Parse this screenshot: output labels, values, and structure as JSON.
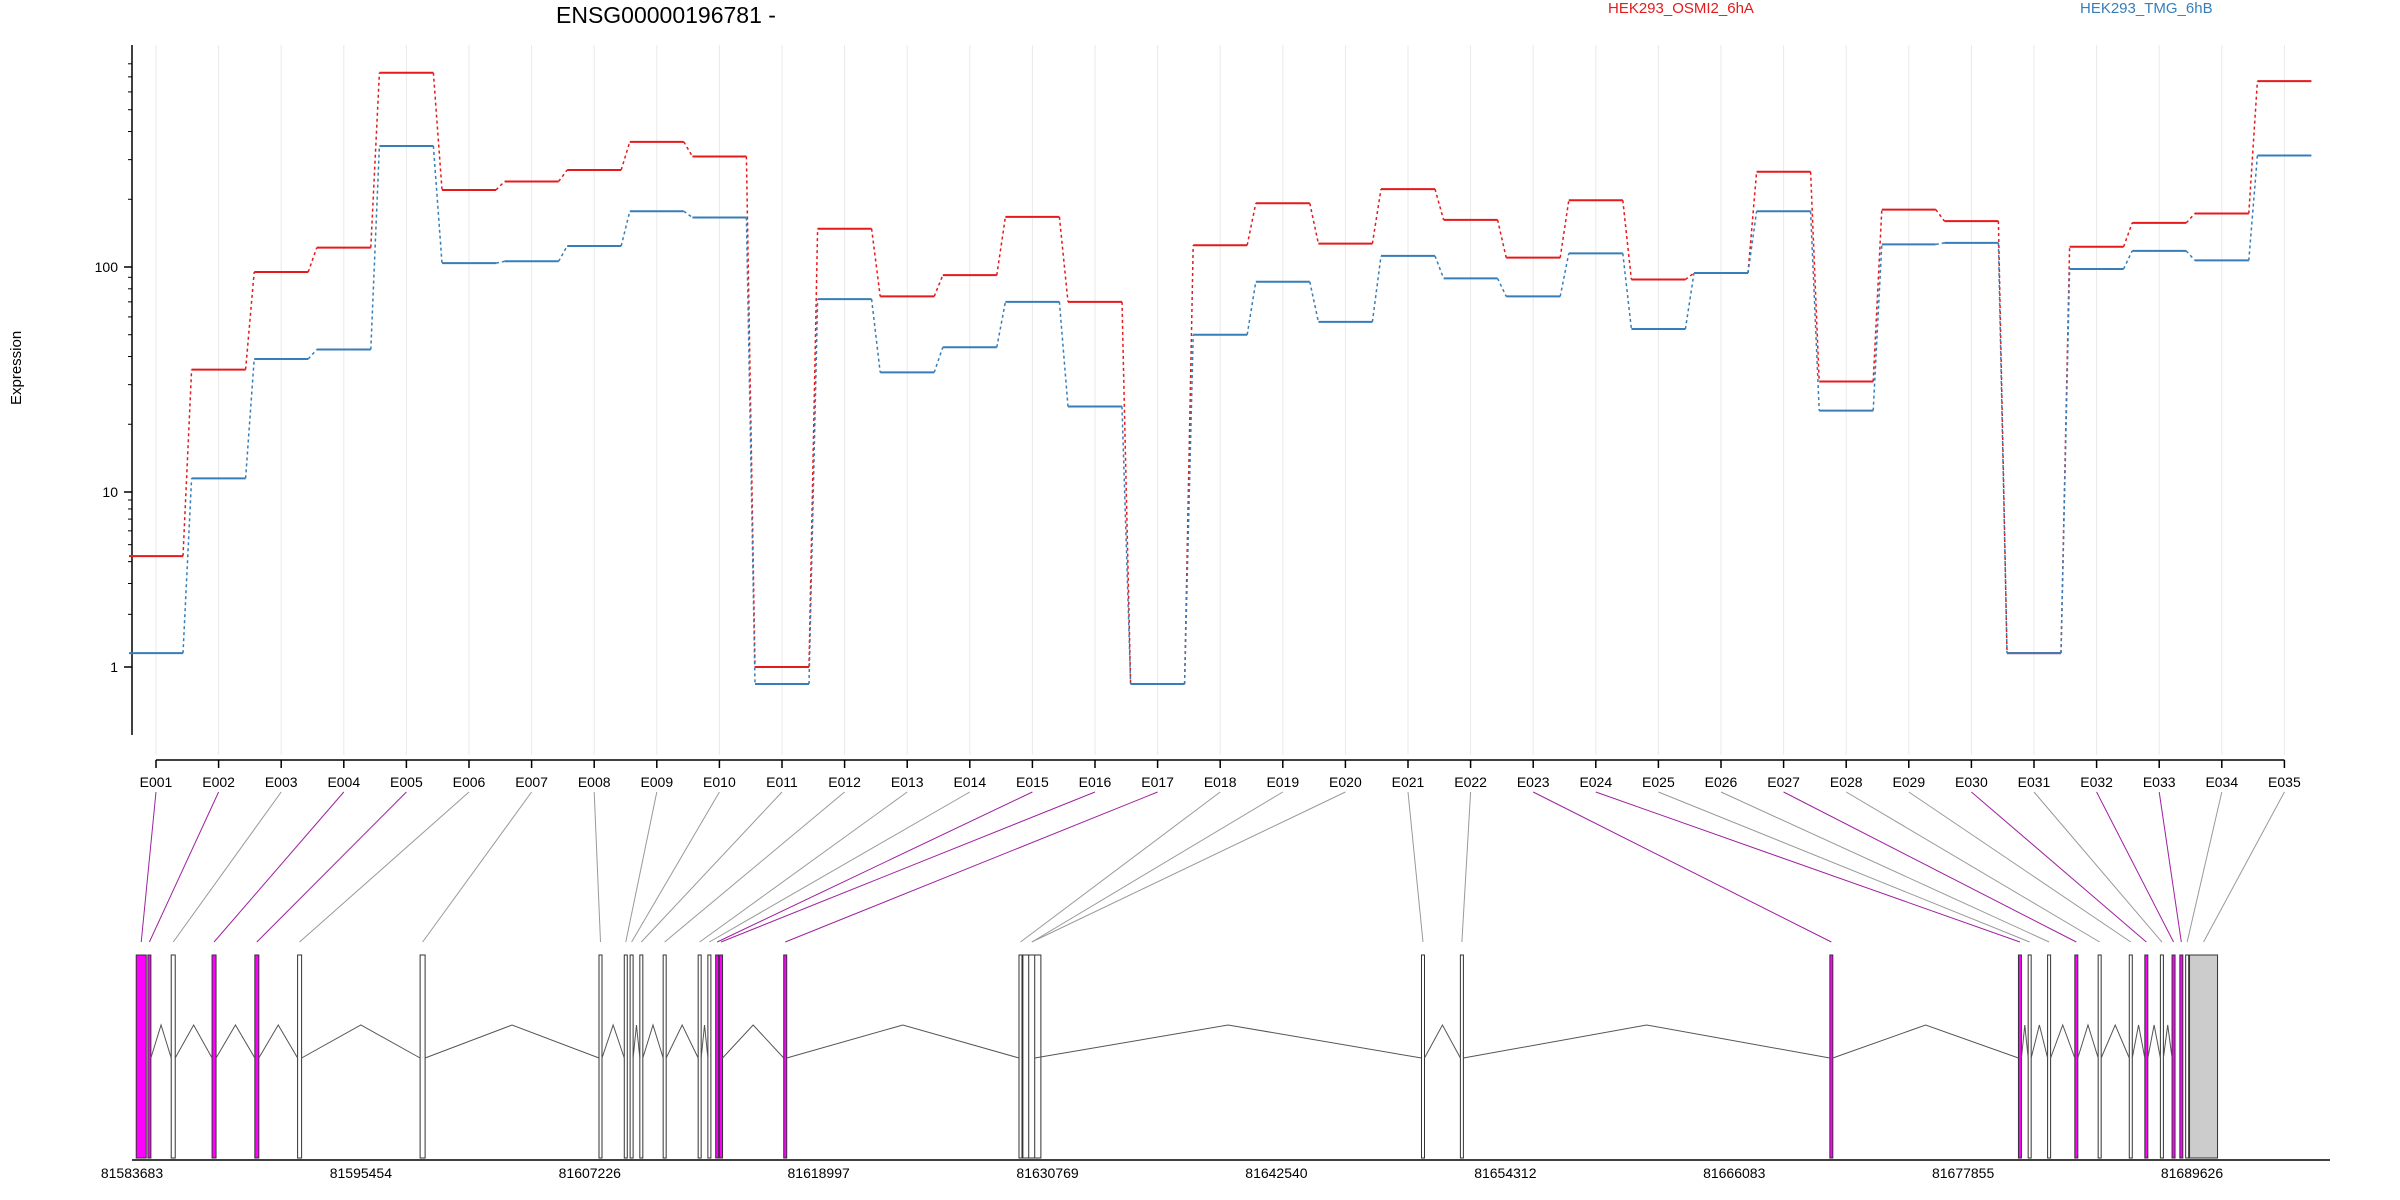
{
  "chart_data": {
    "type": "line",
    "title": "ENSG00000196781 -",
    "ylabel": "Expression",
    "yscale": "log",
    "ylim": [
      0.5,
      900
    ],
    "yticks": [
      "1",
      "10",
      "100"
    ],
    "categories": [
      "E001",
      "E002",
      "E003",
      "E004",
      "E005",
      "E006",
      "E007",
      "E008",
      "E009",
      "E010",
      "E011",
      "E012",
      "E013",
      "E014",
      "E015",
      "E016",
      "E017",
      "E018",
      "E019",
      "E020",
      "E021",
      "E022",
      "E023",
      "E024",
      "E025",
      "E026",
      "E027",
      "E028",
      "E029",
      "E030",
      "E031",
      "E032",
      "E033",
      "E034",
      "E035"
    ],
    "series": [
      {
        "name": "HEK293_OSMI2_6hA",
        "color": "#e41a1c",
        "values": [
          4.3,
          35,
          95,
          122,
          730,
          220,
          240,
          270,
          360,
          310,
          1.0,
          148,
          74,
          92,
          167,
          70,
          0.8,
          125,
          192,
          127,
          222,
          162,
          110,
          198,
          88,
          94,
          265,
          31,
          180,
          160,
          1.2,
          123,
          157,
          173,
          670
        ]
      },
      {
        "name": "HEK293_TMG_6hB",
        "color": "#377eb8",
        "values": [
          1.2,
          11.5,
          39,
          43,
          345,
          104,
          106,
          124,
          177,
          166,
          0.8,
          72,
          34,
          44,
          70,
          24,
          0.8,
          50,
          86,
          57,
          112,
          89,
          74,
          115,
          53,
          94,
          177,
          23,
          126,
          128,
          1.2,
          98,
          118,
          107,
          313
        ]
      }
    ],
    "gene_model": {
      "coordinate_ticks": [
        "81583683",
        "81595454",
        "81607226",
        "81618997",
        "81630769",
        "81642540",
        "81654312",
        "81666083",
        "81677855",
        "81689626"
      ],
      "exon_highlight_color": "#ff00ff",
      "highlighted_exons": [
        "E001",
        "E002",
        "E004",
        "E005",
        "E015",
        "E016",
        "E017",
        "E023",
        "E024",
        "E027",
        "E030",
        "E032",
        "E033"
      ]
    }
  }
}
